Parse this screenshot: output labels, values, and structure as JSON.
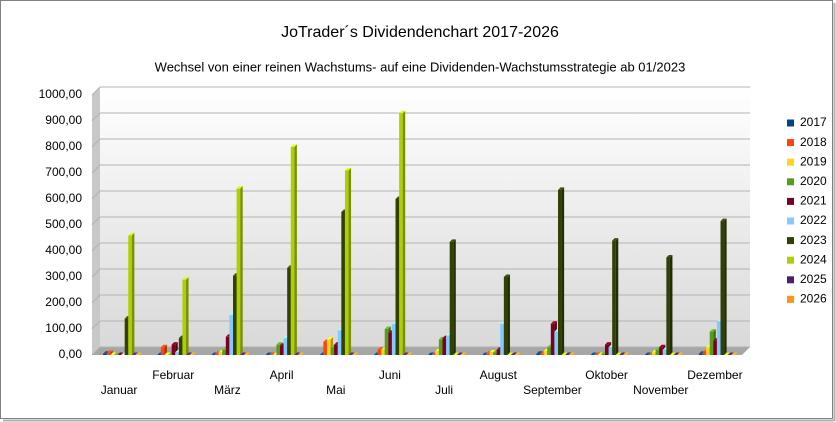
{
  "chart_data": {
    "type": "bar",
    "title": "JoTrader´s Dividendenchart 2017-2026",
    "subtitle": "Wechsel von einer reinen Wachstums- auf eine Dividenden-Wachstumsstrategie ab 01/2023",
    "categories": [
      "Januar",
      "Februar",
      "März",
      "April",
      "Mai",
      "Juni",
      "Juli",
      "August",
      "September",
      "Oktober",
      "November",
      "Dezember"
    ],
    "series": [
      {
        "name": "2017",
        "color": "#004586",
        "values": [
          5,
          0,
          0,
          0,
          0,
          0,
          0,
          0,
          5,
          0,
          0,
          5
        ]
      },
      {
        "name": "2018",
        "color": "#ff420e",
        "values": [
          8,
          30,
          5,
          0,
          50,
          20,
          0,
          5,
          5,
          0,
          0,
          10
        ]
      },
      {
        "name": "2019",
        "color": "#ffd320",
        "values": [
          0,
          0,
          10,
          0,
          60,
          20,
          15,
          10,
          15,
          0,
          10,
          30
        ]
      },
      {
        "name": "2020",
        "color": "#579d1c",
        "values": [
          0,
          0,
          20,
          40,
          30,
          100,
          60,
          10,
          30,
          5,
          20,
          90
        ]
      },
      {
        "name": "2021",
        "color": "#7e0021",
        "values": [
          0,
          40,
          70,
          35,
          40,
          85,
          65,
          20,
          120,
          40,
          30,
          55
        ]
      },
      {
        "name": "2022",
        "color": "#83caff",
        "values": [
          0,
          10,
          155,
          65,
          95,
          120,
          75,
          120,
          90,
          30,
          20,
          130
        ]
      },
      {
        "name": "2023",
        "color": "#314004",
        "values": [
          140,
          65,
          305,
          335,
          550,
          600,
          435,
          300,
          635,
          440,
          375,
          515
        ]
      },
      {
        "name": "2024",
        "color": "#aecf00",
        "values": [
          460,
          290,
          640,
          800,
          710,
          930,
          0,
          0,
          0,
          0,
          0,
          0
        ]
      },
      {
        "name": "2025",
        "color": "#4b1f6f",
        "values": [
          0,
          0,
          0,
          0,
          0,
          0,
          0,
          0,
          0,
          0,
          0,
          0
        ]
      },
      {
        "name": "2026",
        "color": "#ff950e",
        "values": [
          0,
          0,
          0,
          0,
          0,
          0,
          0,
          0,
          0,
          0,
          0,
          0
        ]
      }
    ],
    "ylim": [
      0,
      1000
    ],
    "yticks": [
      {
        "value": 0,
        "label": "0,00"
      },
      {
        "value": 100,
        "label": "100,00"
      },
      {
        "value": 200,
        "label": "200,00"
      },
      {
        "value": 300,
        "label": "300,00"
      },
      {
        "value": 400,
        "label": "400,00"
      },
      {
        "value": 500,
        "label": "500,00"
      },
      {
        "value": 600,
        "label": "600,00"
      },
      {
        "value": 700,
        "label": "700,00"
      },
      {
        "value": 800,
        "label": "800,00"
      },
      {
        "value": 900,
        "label": "900,00"
      },
      {
        "value": 1000,
        "label": "1000,00"
      }
    ],
    "grid": true,
    "legend": "right"
  }
}
